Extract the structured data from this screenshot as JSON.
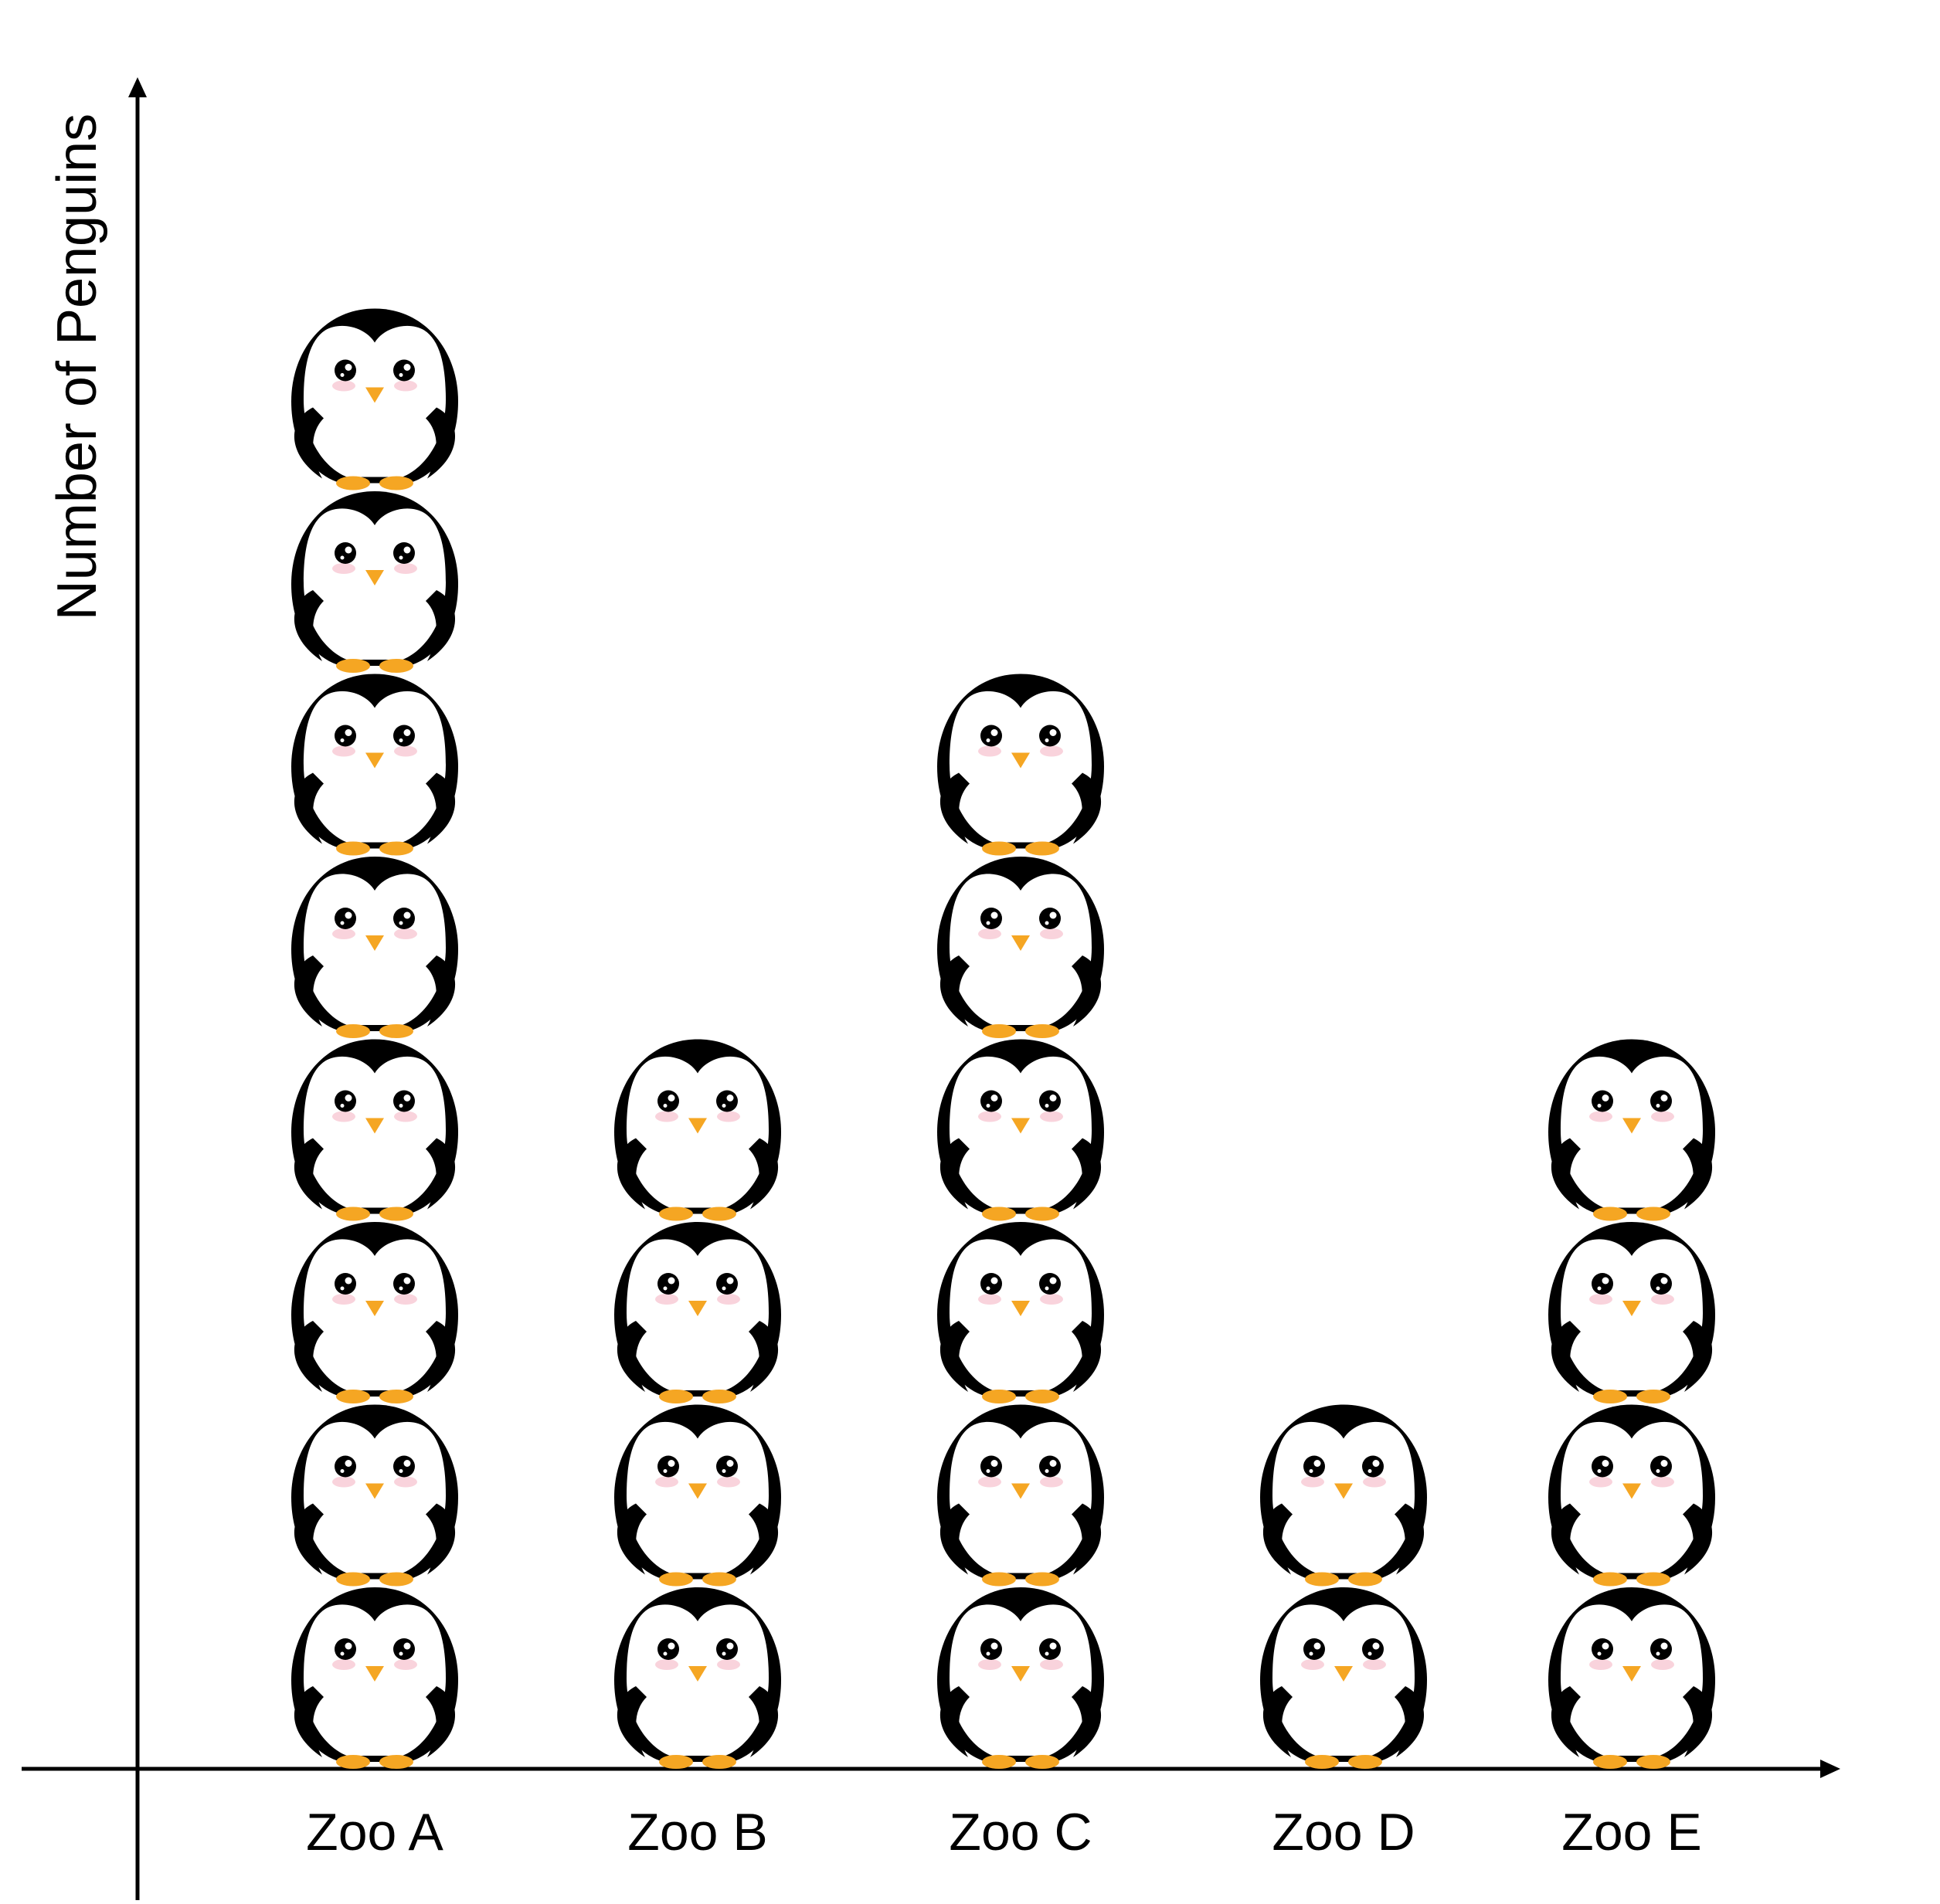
{
  "chart_data": {
    "type": "bar",
    "style": "pictograph",
    "icon": "penguin-icon",
    "categories": [
      "Zoo A",
      "Zoo B",
      "Zoo C",
      "Zoo D",
      "Zoo E"
    ],
    "values": [
      8,
      4,
      6,
      2,
      4
    ],
    "title": "",
    "xlabel": "",
    "ylabel": "Number of Penguins",
    "ylim": [
      0,
      8
    ],
    "grid": false,
    "legend": "none",
    "colors": {
      "body": "#000000",
      "belly": "#ffffff",
      "beak": "#f5a623",
      "feet": "#f5a623",
      "cheek": "#f9d3dc"
    }
  }
}
